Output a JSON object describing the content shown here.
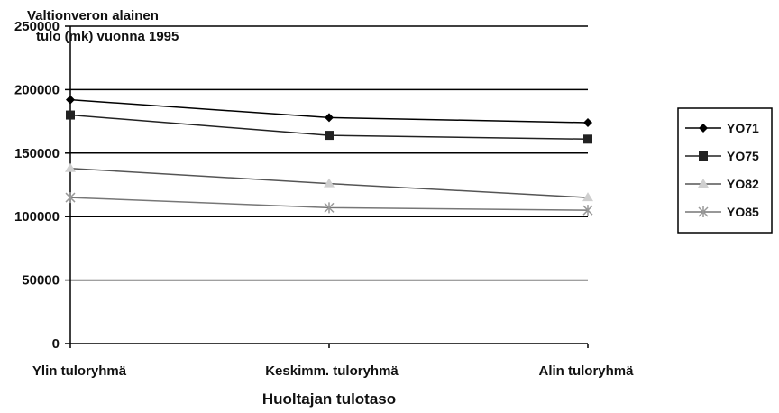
{
  "chart_data": {
    "type": "line",
    "title_lines": [
      "Valtionveron alainen",
      "tulo (mk) vuonna 1995"
    ],
    "xlabel": "Huoltajan tulotaso",
    "ylabel": "",
    "categories": [
      "Ylin tuloryhmä",
      "Keskimm. tuloryhmä",
      "Alin tuloryhmä"
    ],
    "ylim": [
      0,
      250000
    ],
    "yticks": [
      0,
      50000,
      100000,
      150000,
      200000,
      250000
    ],
    "ytick_labels": [
      "0",
      "50000",
      "100000",
      "150000",
      "200000",
      "250000"
    ],
    "grid": true,
    "legend_position": "right",
    "series": [
      {
        "name": "YO71",
        "values": [
          192000,
          178000,
          174000
        ],
        "marker": "diamond",
        "color": "#000000"
      },
      {
        "name": "YO75",
        "values": [
          180000,
          164000,
          161000
        ],
        "marker": "square",
        "color": "#222222"
      },
      {
        "name": "YO82",
        "values": [
          138000,
          126000,
          115000
        ],
        "marker": "triangle",
        "color": "#555555"
      },
      {
        "name": "YO85",
        "values": [
          115000,
          107000,
          105000
        ],
        "marker": "x",
        "color": "#777777"
      }
    ]
  }
}
